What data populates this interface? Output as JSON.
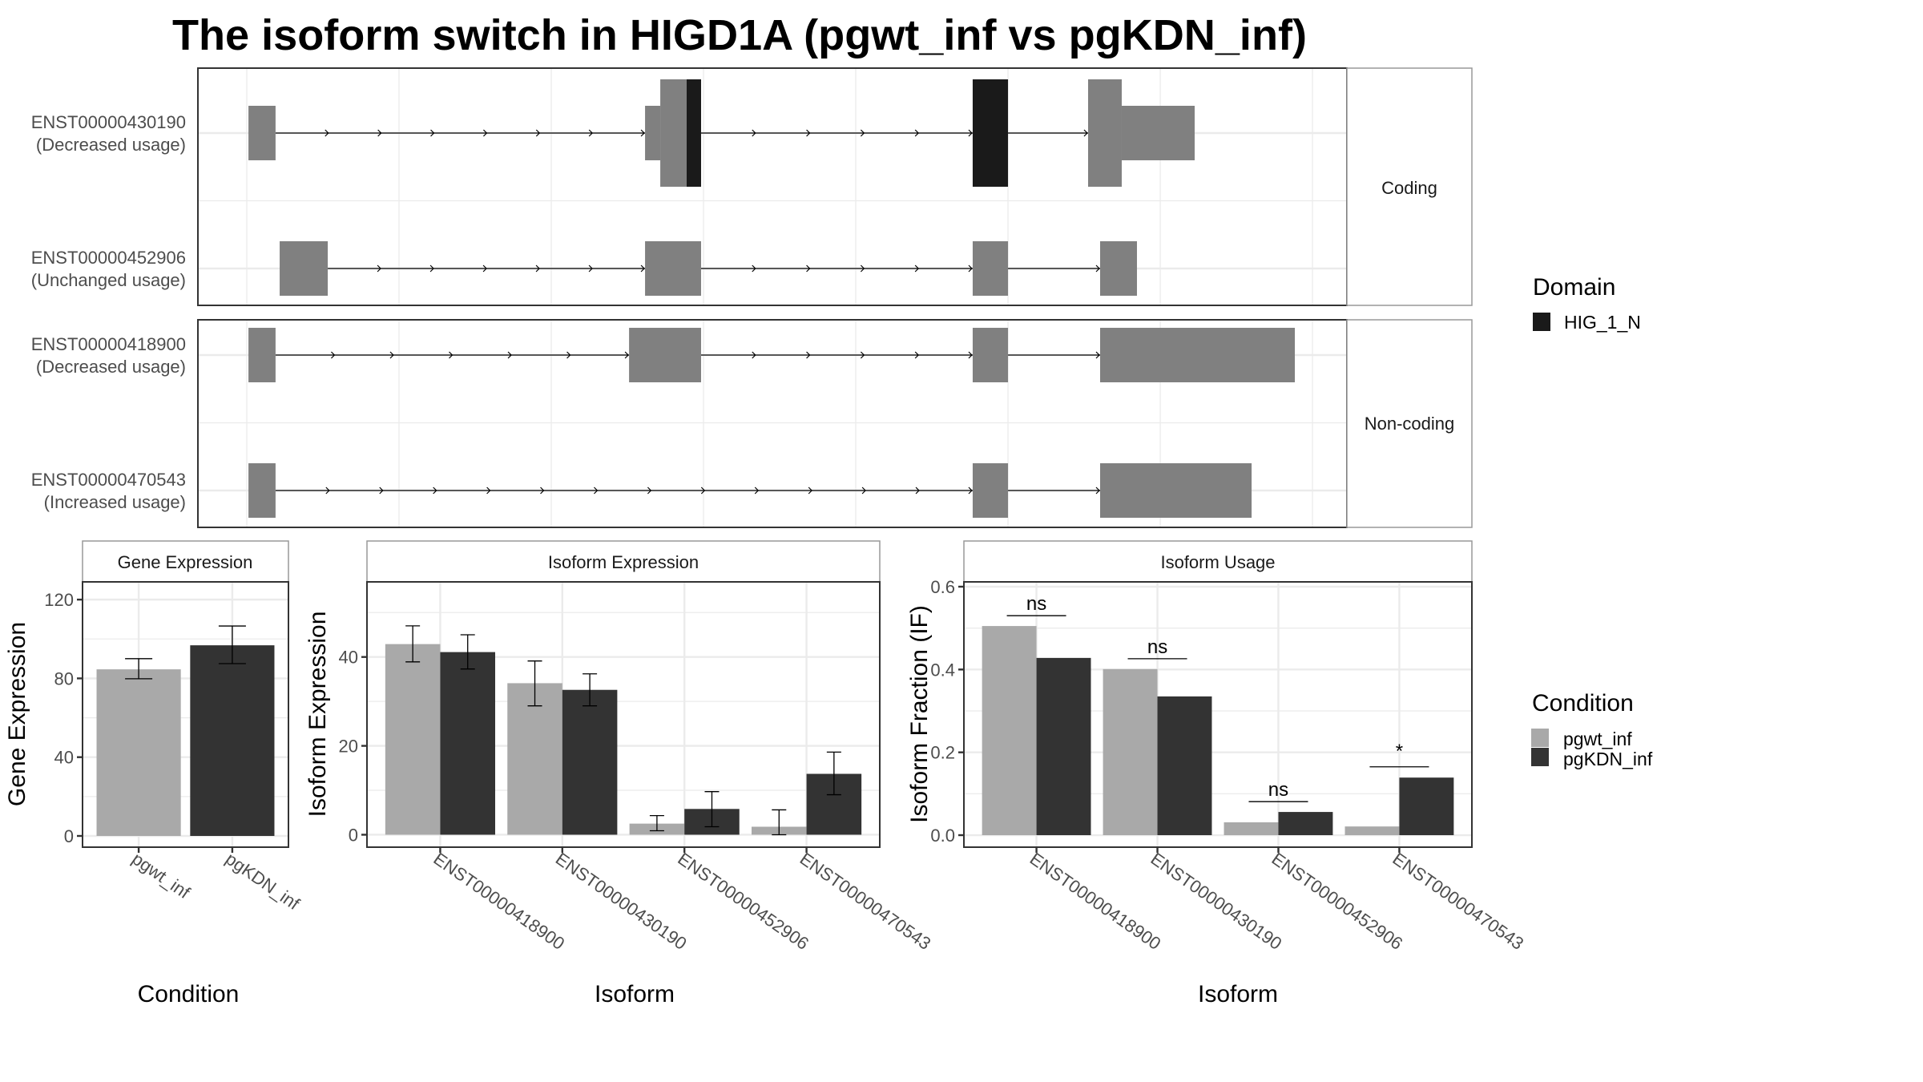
{
  "title": "The isoform switch in HIGD1A (pgwt_inf vs pgKDN_inf)",
  "colors": {
    "exon": "#808080",
    "domain": "#1a1a1a",
    "pgwt_inf": "#a9a9a9",
    "pgKDN_inf": "#333333"
  },
  "chart_data": [
    {
      "type": "transcript-structure",
      "position_units": "relative genomic position (unlabeled axis, gridline spacing = 1000)",
      "xlim": [
        -321,
        7226
      ],
      "gridlines": [
        0,
        1000,
        2000,
        3000,
        4000,
        5000,
        6000,
        7000
      ],
      "facets": [
        {
          "label": "Coding",
          "transcripts": [
            {
              "id": "ENST00000430190",
              "status": "(Decreased usage)",
              "exons": [
                {
                  "start": 11,
                  "end": 189,
                  "kind": "utr"
                },
                {
                  "start": 2616,
                  "end": 2716,
                  "kind": "utr"
                },
                {
                  "start": 2716,
                  "end": 2889,
                  "kind": "cds"
                },
                {
                  "start": 2889,
                  "end": 2984,
                  "kind": "domain"
                },
                {
                  "start": 4768,
                  "end": 5000,
                  "kind": "domain"
                },
                {
                  "start": 5526,
                  "end": 5747,
                  "kind": "cds"
                },
                {
                  "start": 5747,
                  "end": 6226,
                  "kind": "utr"
                }
              ]
            },
            {
              "id": "ENST00000452906",
              "status": "(Unchanged usage)",
              "exons": [
                {
                  "start": 216,
                  "end": 532,
                  "kind": "utr"
                },
                {
                  "start": 2616,
                  "end": 2984,
                  "kind": "utr"
                },
                {
                  "start": 4768,
                  "end": 5000,
                  "kind": "utr"
                },
                {
                  "start": 5605,
                  "end": 5847,
                  "kind": "utr"
                }
              ]
            }
          ]
        },
        {
          "label": "Non-coding",
          "transcripts": [
            {
              "id": "ENST00000418900",
              "status": "(Decreased usage)",
              "exons": [
                {
                  "start": 11,
                  "end": 189,
                  "kind": "utr"
                },
                {
                  "start": 2511,
                  "end": 2984,
                  "kind": "utr"
                },
                {
                  "start": 4768,
                  "end": 5000,
                  "kind": "utr"
                },
                {
                  "start": 5605,
                  "end": 6884,
                  "kind": "utr"
                }
              ]
            },
            {
              "id": "ENST00000470543",
              "status": "(Increased usage)",
              "exons": [
                {
                  "start": 11,
                  "end": 189,
                  "kind": "utr"
                },
                {
                  "start": 4768,
                  "end": 5000,
                  "kind": "utr"
                },
                {
                  "start": 5605,
                  "end": 6600,
                  "kind": "utr"
                }
              ]
            }
          ]
        }
      ],
      "legend": {
        "title": "Domain",
        "items": [
          {
            "label": "HIG_1_N",
            "color": "#1a1a1a"
          }
        ],
        "placement": "right"
      }
    },
    {
      "type": "bar",
      "title": "Gene Expression",
      "xlabel": "Condition",
      "ylabel": "Gene Expression",
      "categories": [
        "pgwt_inf",
        "pgKDN_inf"
      ],
      "values": [
        84.6,
        96.8
      ],
      "error_low": [
        79.8,
        87.5
      ],
      "error_high": [
        90.0,
        106.6
      ],
      "ylim": [
        -5.7,
        129
      ],
      "yticks": [
        0,
        40,
        80,
        120
      ],
      "yticks_minor": [
        20,
        60,
        100
      ],
      "tick_labels": [
        "0",
        "40",
        "80",
        "120"
      ],
      "grid": true
    },
    {
      "type": "bar",
      "title": "Isoform Expression",
      "xlabel": "Isoform",
      "ylabel": "Isoform Expression",
      "categories": [
        "ENST00000418900",
        "ENST00000430190",
        "ENST00000452906",
        "ENST00000470543"
      ],
      "series": [
        {
          "name": "pgwt_inf",
          "values": [
            42.9,
            34.1,
            2.5,
            1.8
          ],
          "error_low": [
            38.9,
            29.0,
            0.9,
            0.0
          ],
          "error_high": [
            47.0,
            39.1,
            4.3,
            5.6
          ]
        },
        {
          "name": "pgKDN_inf",
          "values": [
            41.1,
            32.6,
            5.8,
            13.7
          ],
          "error_low": [
            37.3,
            29.0,
            1.8,
            9.0
          ],
          "error_high": [
            45.0,
            36.2,
            9.7,
            18.6
          ]
        }
      ],
      "ylim": [
        -2.8,
        56.9
      ],
      "yticks": [
        0,
        20,
        40
      ],
      "yticks_minor": [
        10,
        30,
        50
      ],
      "tick_labels": [
        "0",
        "20",
        "40"
      ],
      "grid": true
    },
    {
      "type": "bar",
      "title": "Isoform Usage",
      "xlabel": "Isoform",
      "ylabel": "Isoform Fraction (IF)",
      "categories": [
        "ENST00000418900",
        "ENST00000430190",
        "ENST00000452906",
        "ENST00000470543"
      ],
      "series": [
        {
          "name": "pgwt_inf",
          "values": [
            0.505,
            0.401,
            0.031,
            0.021
          ]
        },
        {
          "name": "pgKDN_inf",
          "values": [
            0.428,
            0.335,
            0.056,
            0.139
          ]
        }
      ],
      "significance": [
        {
          "label": "ns",
          "y": 0.53
        },
        {
          "label": "ns",
          "y": 0.426
        },
        {
          "label": "ns",
          "y": 0.081
        },
        {
          "label": "*",
          "y": 0.165
        }
      ],
      "ylim": [
        -0.029,
        0.6116
      ],
      "yticks": [
        0.0,
        0.2,
        0.4,
        0.6
      ],
      "yticks_minor": [
        0.1,
        0.3,
        0.5
      ],
      "tick_labels": [
        "0.0",
        "0.2",
        "0.4",
        "0.6"
      ],
      "grid": true
    }
  ],
  "legends": {
    "domain": {
      "title": "Domain",
      "items": [
        "HIG_1_N"
      ]
    },
    "condition": {
      "title": "Condition",
      "items": [
        "pgwt_inf",
        "pgKDN_inf"
      ]
    }
  }
}
